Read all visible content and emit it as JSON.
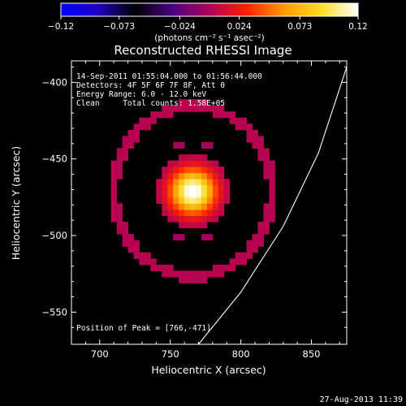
{
  "chart_data": {
    "type": "heatmap",
    "title": "Reconstructed RHESSI Image",
    "xlabel": "Heliocentric X (arcsec)",
    "ylabel": "Heliocentric Y (arcsec)",
    "xlim": [
      680,
      875
    ],
    "ylim": [
      -571,
      -386
    ],
    "x_ticks": [
      700,
      750,
      800,
      850
    ],
    "y_ticks": [
      -400,
      -450,
      -500,
      -550
    ],
    "colorbar": {
      "range": [
        -0.12,
        0.12
      ],
      "ticks": [
        "−0.12",
        "−0.073",
        "−0.024",
        "0.024",
        "0.073",
        "0.12"
      ],
      "units": "(photons cm⁻² s⁻¹ asec⁻²)",
      "colormap": [
        "#0000ff",
        "#2000c0",
        "#000000",
        "#4b0082",
        "#b0005a",
        "#ff2000",
        "#ff9900",
        "#ffdd22",
        "#ffffff"
      ]
    },
    "source": {
      "peak": [
        766,
        -471
      ],
      "sigma_x_arcsec": 11,
      "sigma_y_arcsec": 10,
      "peak_value": 0.12
    },
    "limb_curve": [
      [
        770,
        -571
      ],
      [
        800,
        -537
      ],
      [
        830,
        -494
      ],
      [
        855,
        -446
      ],
      [
        875,
        -390
      ]
    ],
    "annotations": {
      "time": "14-Sep-2011 01:55:04.000 to 01:56:44.000",
      "detectors": "Detectors: 4F 5F 6F 7F 8F, Att 0",
      "energy": "Energy Range: 6.0 - 12.0 keV",
      "clean": "Clean     Total counts: 1.58E+05",
      "peak_position": "Position of Peak = [766,-471]"
    }
  },
  "footer": {
    "timestamp": "27-Aug-2013 11:39"
  }
}
